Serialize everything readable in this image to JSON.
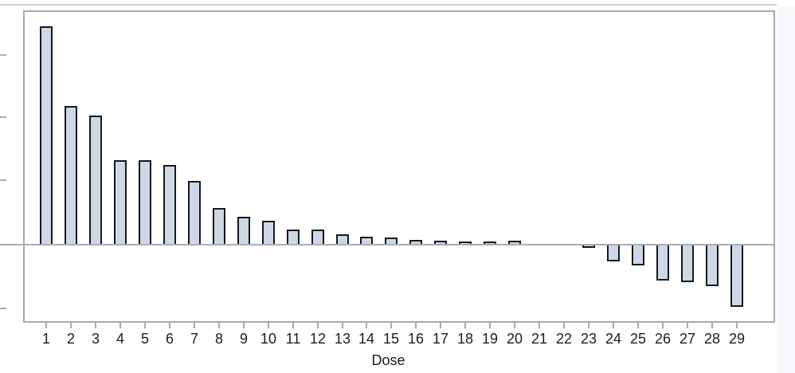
{
  "chart_data": {
    "type": "bar",
    "title": "",
    "xlabel": "Dose",
    "ylabel": "",
    "categories": [
      "1",
      "2",
      "3",
      "4",
      "5",
      "6",
      "7",
      "8",
      "9",
      "10",
      "11",
      "12",
      "13",
      "14",
      "15",
      "16",
      "17",
      "18",
      "19",
      "20",
      "21",
      "22",
      "23",
      "24",
      "25",
      "26",
      "27",
      "28",
      "29"
    ],
    "values": [
      274,
      174,
      162,
      106,
      106,
      100,
      80,
      46,
      35,
      30,
      19,
      19,
      13,
      10,
      9,
      6,
      5,
      4,
      4,
      5,
      0,
      0,
      -4,
      -21,
      -26,
      -45,
      -47,
      -52,
      -78
    ],
    "units": "pixels from zero baseline (y-axis tick labels not visible in image)",
    "ylim": [
      -97,
      294
    ],
    "y_axis_labels_visible": false,
    "grid": false,
    "legend_visible": false
  },
  "colors": {
    "bar_fill": "#cdd7e6",
    "bar_border": "#141921",
    "frame": "#a6aab0",
    "zero_line": "#a9adb3",
    "label_text": "#1c1c1c",
    "page_background": "#f7f8fc",
    "top_rule": "#cbcfd8"
  }
}
